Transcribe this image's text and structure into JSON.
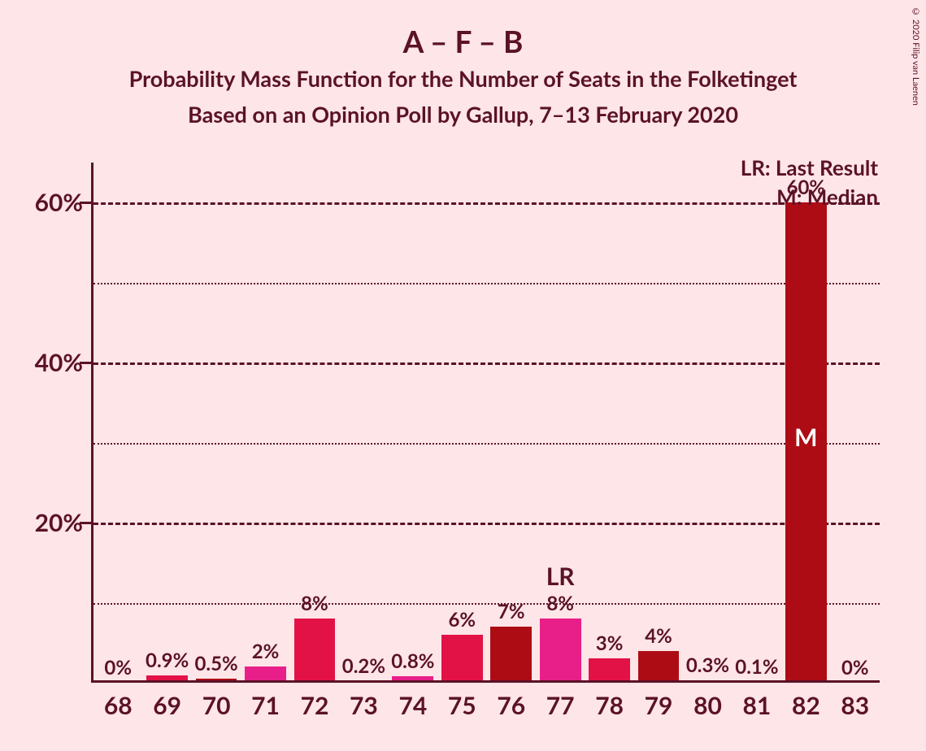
{
  "title": "A – F – B",
  "title_fontsize": 37,
  "subtitle1": "Probability Mass Function for the Number of Seats in the Folketinget",
  "subtitle2": "Based on an Opinion Poll by Gallup, 7–13 February 2020",
  "subtitle_fontsize": 27,
  "copyright": "© 2020 Filip van Laenen",
  "legend_lr": "LR: Last Result",
  "legend_m": "M: Median",
  "legend_fontsize": 26,
  "pmf_chart": {
    "type": "bar",
    "background_color": "#fde5e8",
    "axis_color": "#5b1226",
    "grid_major_color": "#5b1226",
    "grid_minor_color": "#5b1226",
    "y_axis": {
      "min": 0,
      "max": 65,
      "major_ticks": [
        20,
        40,
        60
      ],
      "minor_ticks": [
        10,
        30,
        50
      ],
      "tick_labels": [
        "20%",
        "40%",
        "60%"
      ],
      "tick_label_fontsize": 30
    },
    "x_label_fontsize": 30,
    "bar_label_fontsize": 24,
    "in_bar_label_fontsize": 30,
    "bar_width": 0.84,
    "categories": [
      "68",
      "69",
      "70",
      "71",
      "72",
      "73",
      "74",
      "75",
      "76",
      "77",
      "78",
      "79",
      "80",
      "81",
      "82",
      "83"
    ],
    "values": [
      0,
      0.9,
      0.5,
      2,
      8,
      0.2,
      0.8,
      6,
      7,
      8,
      3,
      4,
      0.3,
      0.1,
      60,
      0
    ],
    "value_labels": [
      "0%",
      "0.9%",
      "0.5%",
      "2%",
      "8%",
      "0.2%",
      "0.8%",
      "6%",
      "7%",
      "8%",
      "3%",
      "4%",
      "0.3%",
      "0.1%",
      "60%",
      "0%"
    ],
    "bar_colors": [
      "#e31246",
      "#e31246",
      "#ae0c15",
      "#e81f89",
      "#e31246",
      "#ae0c15",
      "#e81f89",
      "#e31246",
      "#ae0c15",
      "#e81f89",
      "#e31246",
      "#ae0c15",
      "#e81f89",
      "#e31246",
      "#ae0c15",
      "#e81f89"
    ],
    "lr_index": 9,
    "lr_text": "LR",
    "median_index": 14,
    "median_text": "M"
  }
}
